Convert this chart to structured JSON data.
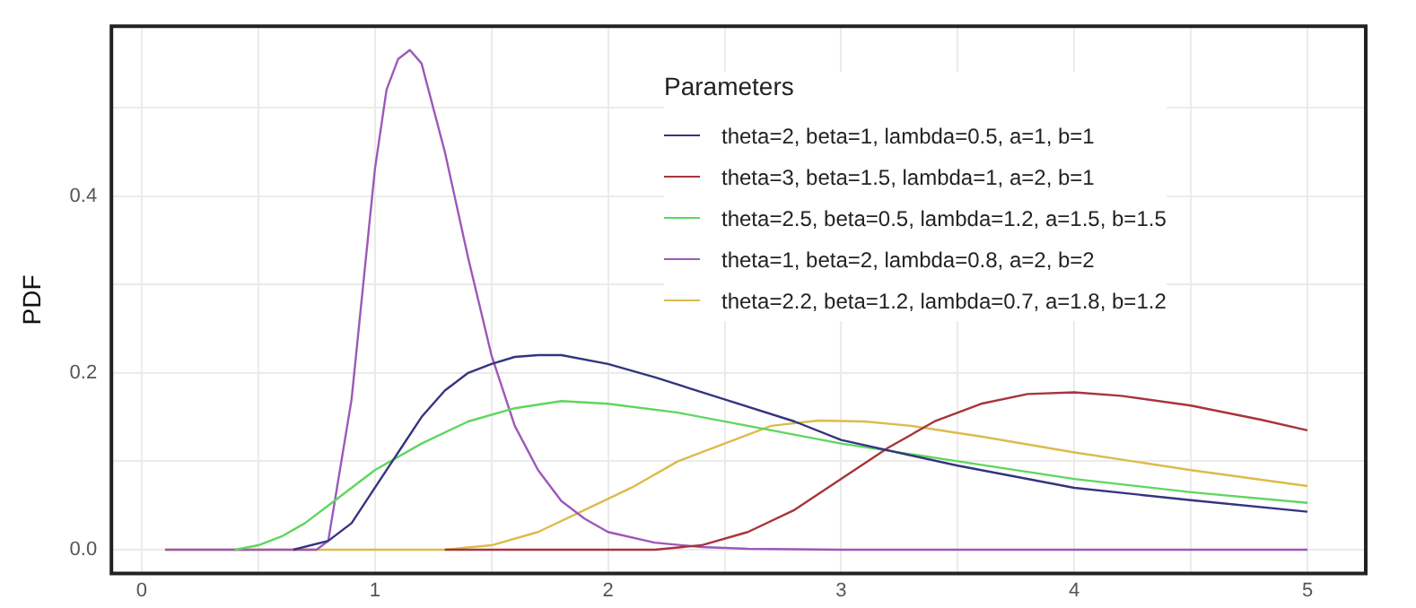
{
  "chart_data": {
    "type": "line",
    "ylabel": "PDF",
    "legend_title": "Parameters",
    "legend": "top right",
    "grid": true,
    "marker": "none",
    "line_style": "solid",
    "xlim": [
      -0.13,
      5.25
    ],
    "ylim": [
      -0.027,
      0.592
    ],
    "xticks": [
      0,
      {
        "value": 0.5,
        "label": null
      },
      1,
      {
        "value": 1.5,
        "label": null
      },
      2,
      {
        "value": 2.5,
        "label": null
      },
      3,
      {
        "value": 3.5,
        "label": null
      },
      4,
      {
        "value": 4.5,
        "label": null
      },
      5
    ],
    "yticks": [
      {
        "value": 0,
        "label": "0.0"
      },
      {
        "value": 0.1,
        "label": null
      },
      0.2,
      {
        "value": 0.3,
        "label": null
      },
      0.4,
      {
        "value": 0.5,
        "label": null
      }
    ],
    "series": [
      {
        "name": "theta=2, beta=1, lambda=0.5, a=1, b=1",
        "color": "#34357e",
        "x": [
          0.65,
          0.8,
          0.9,
          1.0,
          1.1,
          1.2,
          1.3,
          1.4,
          1.5,
          1.6,
          1.7,
          1.8,
          2.0,
          2.2,
          2.5,
          2.8,
          3.0,
          3.5,
          4.0,
          4.5,
          5.0
        ],
        "values": [
          0,
          0.01,
          0.03,
          0.07,
          0.11,
          0.15,
          0.18,
          0.2,
          0.21,
          0.218,
          0.22,
          0.22,
          0.21,
          0.195,
          0.17,
          0.145,
          0.124,
          0.095,
          0.07,
          0.056,
          0.043
        ]
      },
      {
        "name": "theta=3, beta=1.5, lambda=1, a=2, b=1",
        "color": "#a8343c",
        "x": [
          1.3,
          2.2,
          2.4,
          2.6,
          2.8,
          3.0,
          3.2,
          3.4,
          3.6,
          3.8,
          4.0,
          4.2,
          4.5,
          4.8,
          5.0
        ],
        "values": [
          0,
          0,
          0.005,
          0.02,
          0.045,
          0.08,
          0.115,
          0.145,
          0.165,
          0.176,
          0.178,
          0.174,
          0.163,
          0.147,
          0.135
        ]
      },
      {
        "name": "theta=2.5, beta=0.5, lambda=1.2, a=1.5, b=1.5",
        "color": "#5fd65f",
        "x": [
          0.4,
          0.5,
          0.6,
          0.7,
          0.8,
          0.9,
          1.0,
          1.2,
          1.4,
          1.6,
          1.8,
          2.0,
          2.3,
          2.6,
          3.0,
          3.5,
          4.0,
          4.5,
          5.0
        ],
        "values": [
          0,
          0.005,
          0.015,
          0.03,
          0.05,
          0.07,
          0.09,
          0.12,
          0.145,
          0.16,
          0.168,
          0.165,
          0.155,
          0.14,
          0.12,
          0.1,
          0.08,
          0.065,
          0.053
        ]
      },
      {
        "name": "theta=1, beta=2, lambda=0.8, a=2, b=2",
        "color": "#9d58b9",
        "x": [
          0.1,
          0.75,
          0.8,
          0.9,
          1.0,
          1.05,
          1.1,
          1.15,
          1.2,
          1.3,
          1.4,
          1.5,
          1.6,
          1.7,
          1.8,
          1.9,
          2.0,
          2.2,
          2.4,
          2.6,
          3.0,
          5.0
        ],
        "values": [
          0,
          0,
          0.01,
          0.17,
          0.43,
          0.52,
          0.555,
          0.565,
          0.55,
          0.45,
          0.33,
          0.22,
          0.14,
          0.09,
          0.055,
          0.035,
          0.02,
          0.008,
          0.003,
          0.001,
          0,
          0
        ]
      },
      {
        "name": "theta=2.2, beta=1.2, lambda=0.7, a=1.8, b=1.2",
        "color": "#dcbb4c",
        "x": [
          0.1,
          1.3,
          1.5,
          1.7,
          1.9,
          2.1,
          2.3,
          2.5,
          2.7,
          2.9,
          3.1,
          3.3,
          3.6,
          4.0,
          4.5,
          5.0
        ],
        "values": [
          0,
          0,
          0.005,
          0.02,
          0.045,
          0.07,
          0.1,
          0.12,
          0.14,
          0.146,
          0.145,
          0.14,
          0.128,
          0.11,
          0.09,
          0.072
        ]
      }
    ]
  }
}
